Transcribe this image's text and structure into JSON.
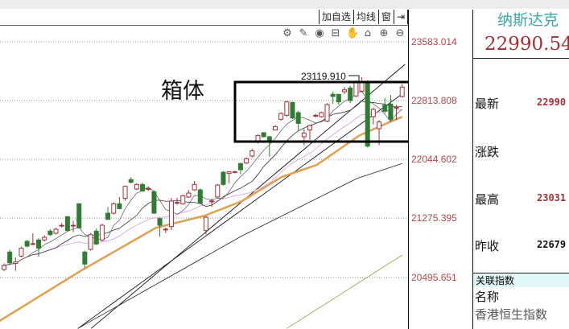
{
  "toolbar": {
    "add_watch": "加自选",
    "ma": "均线",
    "window": "窗",
    "collapse": "⇥"
  },
  "icons": [
    "gear-icon",
    "pen-icon",
    "eye-icon",
    "toolbox-icon",
    "hand-icon",
    "lock-icon",
    "zoom-in-icon",
    "zoom-out-icon"
  ],
  "icon_glyphs": [
    "⚙",
    "✎",
    "◉",
    "⊟",
    "✋",
    "⌂",
    "⊕",
    "⊖"
  ],
  "axis": {
    "labels": [
      "23583.014",
      "22813.808",
      "22044.602",
      "21275.395",
      "20495.651"
    ]
  },
  "annotation": {
    "box_label": "箱体",
    "high_label": "23119.910"
  },
  "quote": {
    "name": "纳斯达克",
    "price": "22990.54",
    "rows": [
      {
        "label": "最新",
        "value": "22990",
        "color": "#a5303a"
      },
      {
        "label": "涨跌",
        "value": "",
        "color": "#e8b0b0"
      },
      {
        "label": "最高",
        "value": "23031",
        "color": "#a5303a"
      },
      {
        "label": "昨收",
        "value": "22679",
        "color": "#111"
      }
    ],
    "related_header": "关联指数",
    "name_col": "名称",
    "related": [
      "香港恒生指数"
    ]
  },
  "colors": {
    "up": "#a5303a",
    "down": "#2e7d32",
    "ma_thick": "#e0a050",
    "axis_text": "#b0474f",
    "title": "#3fa7a7"
  },
  "chart_data": {
    "type": "candlestick",
    "ylim": [
      19829,
      23583.014
    ],
    "yticks": [
      23583.014,
      22813.808,
      22044.602,
      21275.395,
      20495.651
    ],
    "grid": true,
    "ohlc": [
      [
        20601,
        20680,
        20580,
        20654
      ],
      [
        20830,
        20860,
        20660,
        20689
      ],
      [
        20680,
        20759,
        20584,
        20700
      ],
      [
        20777,
        20900,
        20760,
        20882
      ],
      [
        20970,
        20990,
        20890,
        20907
      ],
      [
        20930,
        21075,
        20920,
        20940
      ],
      [
        20988,
        21010,
        20770,
        20882
      ],
      [
        20988,
        21050,
        20970,
        21023
      ],
      [
        21104,
        21130,
        21040,
        21058
      ],
      [
        21076,
        21150,
        21060,
        21128
      ],
      [
        21170,
        21210,
        21150,
        21180
      ],
      [
        21293,
        21300,
        21100,
        21111
      ],
      [
        21170,
        21240,
        21090,
        21180
      ],
      [
        21462,
        21470,
        21140,
        21146
      ],
      [
        20830,
        20850,
        20620,
        20672
      ],
      [
        20865,
        21080,
        20850,
        21058
      ],
      [
        21104,
        21140,
        20920,
        20935
      ],
      [
        20988,
        21200,
        20970,
        21181
      ],
      [
        21339,
        21420,
        21250,
        21258
      ],
      [
        21339,
        21480,
        21320,
        21462
      ],
      [
        21462,
        21550,
        21390,
        21398
      ],
      [
        21532,
        21700,
        21500,
        21690
      ],
      [
        21778,
        21810,
        21730,
        21743
      ],
      [
        21655,
        21730,
        21640,
        21715
      ],
      [
        21715,
        21740,
        21620,
        21630
      ],
      [
        21650,
        21680,
        21630,
        21660
      ],
      [
        21620,
        21640,
        21330,
        21339
      ],
      [
        21269,
        21280,
        21030,
        21181
      ],
      [
        21120,
        21150,
        21080,
        21130
      ],
      [
        21163,
        21540,
        21120,
        21497
      ],
      [
        21470,
        21540,
        21450,
        21480
      ],
      [
        21462,
        21580,
        21450,
        21567
      ],
      [
        21550,
        21640,
        21540,
        21602
      ],
      [
        21644,
        21760,
        21630,
        21715
      ],
      [
        21644,
        21660,
        21460,
        21469
      ],
      [
        21111,
        21300,
        21060,
        21286
      ],
      [
        21490,
        21530,
        21420,
        21500
      ],
      [
        21550,
        21720,
        21540,
        21708
      ],
      [
        21876,
        21890,
        21700,
        21715
      ],
      [
        21860,
        21888,
        21730,
        21880
      ],
      [
        21878,
        21890,
        21860,
        21883
      ],
      [
        21989,
        22000,
        21850,
        21908
      ],
      [
        21996,
        22070,
        21980,
        22052
      ],
      [
        22087,
        22180,
        22070,
        22157
      ],
      [
        22270,
        22370,
        22250,
        22357
      ],
      [
        22393,
        22400,
        22330,
        22340
      ],
      [
        22340,
        22350,
        22080,
        22270
      ],
      [
        22428,
        22490,
        22420,
        22473
      ],
      [
        22568,
        22660,
        22550,
        22645
      ],
      [
        22621,
        22810,
        22600,
        22796
      ],
      [
        22789,
        22800,
        22570,
        22586
      ],
      [
        22656,
        22680,
        22410,
        22515
      ],
      [
        22340,
        22440,
        22230,
        22389
      ],
      [
        22428,
        22500,
        22300,
        22487
      ],
      [
        22610,
        22640,
        22590,
        22620
      ],
      [
        22603,
        22670,
        22590,
        22656
      ],
      [
        22543,
        22780,
        22530,
        22761
      ],
      [
        22895,
        22930,
        22770,
        22867
      ],
      [
        22895,
        22900,
        22760,
        22796
      ],
      [
        22930,
        22990,
        22900,
        22954
      ],
      [
        22979,
        23010,
        22780,
        22814
      ],
      [
        22874,
        23080,
        22860,
        23060
      ],
      [
        22937,
        23119.91,
        22920,
        23060
      ],
      [
        23060,
        23080,
        22200,
        22217
      ],
      [
        22603,
        22720,
        22500,
        22698
      ],
      [
        22445,
        22560,
        22230,
        22533
      ],
      [
        22754,
        22850,
        22650,
        22673
      ],
      [
        22768,
        22888,
        22540,
        22568
      ],
      [
        22720,
        22760,
        22560,
        22725
      ],
      [
        22867,
        23031,
        22850,
        22990
      ]
    ],
    "ma_thick": [
      [
        -1,
        19917
      ],
      [
        13.3,
        20584
      ],
      [
        26.3,
        21146
      ],
      [
        34.7,
        21304
      ],
      [
        41.2,
        21496
      ],
      [
        48.1,
        21813
      ],
      [
        54.2,
        21971
      ],
      [
        61.6,
        22357
      ],
      [
        67.4,
        22551
      ],
      [
        69,
        22600
      ]
    ],
    "ma_long": [
      [
        12.8,
        19829
      ],
      [
        41.2,
        21040
      ],
      [
        61.2,
        21795
      ],
      [
        69,
        21990
      ]
    ],
    "ma_olive": [
      [
        49,
        19829
      ],
      [
        69,
        20790
      ]
    ],
    "trendlines": [
      [
        [
          15.1,
          19829
        ],
        [
          69.5,
          23288
        ]
      ],
      [
        [
          12.8,
          19829
        ],
        [
          69,
          22900
        ]
      ]
    ]
  }
}
